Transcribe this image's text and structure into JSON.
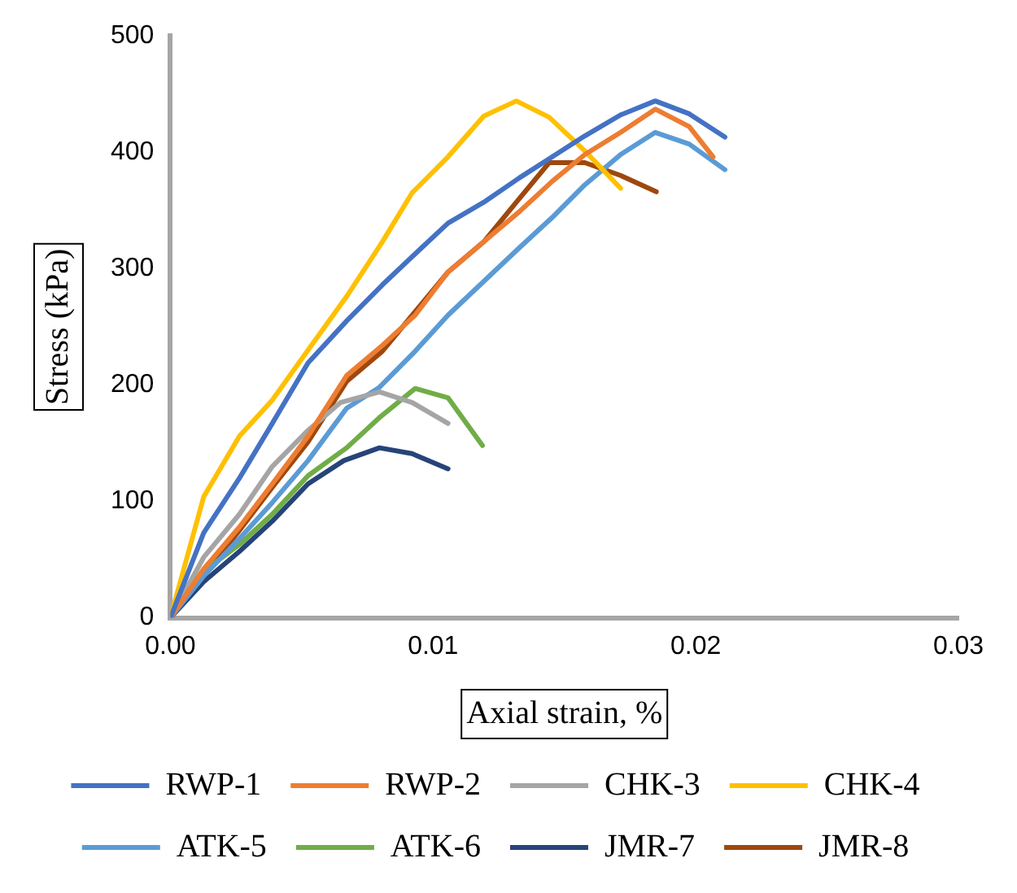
{
  "chart_data": {
    "type": "line",
    "xlabel": "Axial strain, %",
    "ylabel": "Stress (kPa)",
    "xlim": [
      0,
      0.03
    ],
    "xticks": [
      {
        "value": 0,
        "label": "0.00"
      },
      {
        "value": 0.01,
        "label": "0.01"
      },
      {
        "value": 0.02,
        "label": "0.02"
      },
      {
        "value": 0.03,
        "label": "0.03"
      }
    ],
    "ylim": [
      0,
      500
    ],
    "yticks": [
      0,
      100,
      200,
      300,
      400,
      500
    ],
    "grid": false,
    "legend": "bottom",
    "marker": "none",
    "line_style": "solid",
    "series": [
      {
        "name": "RWP-1",
        "color": "#4472c4",
        "x": [
          0,
          0.00127,
          0.00263,
          0.00388,
          0.00524,
          0.00671,
          0.00807,
          0.00943,
          0.01057,
          0.01193,
          0.01329,
          0.01454,
          0.01578,
          0.01714,
          0.01846,
          0.01975,
          0.02111
        ],
        "values": [
          0,
          73,
          120,
          167,
          219,
          255,
          286,
          315,
          339,
          357,
          378,
          396,
          414,
          432,
          444,
          433,
          413
        ]
      },
      {
        "name": "RWP-2",
        "color": "#ed7d31",
        "x": [
          0,
          0.00127,
          0.00263,
          0.00388,
          0.00524,
          0.00671,
          0.00807,
          0.00932,
          0.01057,
          0.01193,
          0.01329,
          0.01454,
          0.01578,
          0.01714,
          0.01846,
          0.01975,
          0.02066
        ],
        "values": [
          0,
          42,
          78,
          115,
          156,
          208,
          234,
          260,
          297,
          323,
          349,
          375,
          398,
          417,
          437,
          422,
          396
        ]
      },
      {
        "name": "CHK-3",
        "color": "#a5a5a5",
        "x": [
          0,
          0.00127,
          0.00263,
          0.00388,
          0.00524,
          0.00648,
          0.00796,
          0.0092,
          0.01057
        ],
        "values": [
          0,
          52,
          89,
          130,
          161,
          185,
          194,
          185,
          167
        ]
      },
      {
        "name": "CHK-4",
        "color": "#ffc000",
        "x": [
          0,
          0.00127,
          0.00263,
          0.00388,
          0.00524,
          0.00671,
          0.00807,
          0.0092,
          0.01057,
          0.01193,
          0.01317,
          0.01442,
          0.01578,
          0.01714
        ],
        "values": [
          0,
          104,
          156,
          187,
          230,
          276,
          323,
          365,
          396,
          431,
          444,
          430,
          401,
          369
        ]
      },
      {
        "name": "ATK-5",
        "color": "#5b9bd5",
        "x": [
          0,
          0.00127,
          0.00263,
          0.00388,
          0.00524,
          0.00671,
          0.00796,
          0.00932,
          0.01057,
          0.01193,
          0.01329,
          0.01454,
          0.01578,
          0.01714,
          0.01846,
          0.01975,
          0.02111
        ],
        "values": [
          0,
          36,
          68,
          99,
          135,
          180,
          198,
          229,
          260,
          289,
          318,
          344,
          372,
          398,
          417,
          407,
          385
        ]
      },
      {
        "name": "ATK-6",
        "color": "#70ad47",
        "x": [
          0,
          0.00127,
          0.00263,
          0.00388,
          0.00524,
          0.00671,
          0.00796,
          0.00932,
          0.01057,
          0.01188
        ],
        "values": [
          0,
          40,
          63,
          89,
          122,
          146,
          172,
          197,
          189,
          148
        ]
      },
      {
        "name": "JMR-7",
        "color": "#264478",
        "x": [
          0,
          0.00127,
          0.00263,
          0.00388,
          0.00524,
          0.0066,
          0.00796,
          0.0092,
          0.01057
        ],
        "values": [
          0,
          31,
          57,
          83,
          115,
          135,
          146,
          141,
          128
        ]
      },
      {
        "name": "JMR-8",
        "color": "#9e480e",
        "x": [
          0,
          0.00127,
          0.00263,
          0.00388,
          0.00524,
          0.00671,
          0.00807,
          0.00943,
          0.01057,
          0.01193,
          0.01317,
          0.01442,
          0.01578,
          0.01714,
          0.0185
        ],
        "values": [
          0,
          36,
          75,
          112,
          151,
          203,
          229,
          266,
          297,
          323,
          357,
          391,
          391,
          380,
          366
        ]
      }
    ]
  }
}
